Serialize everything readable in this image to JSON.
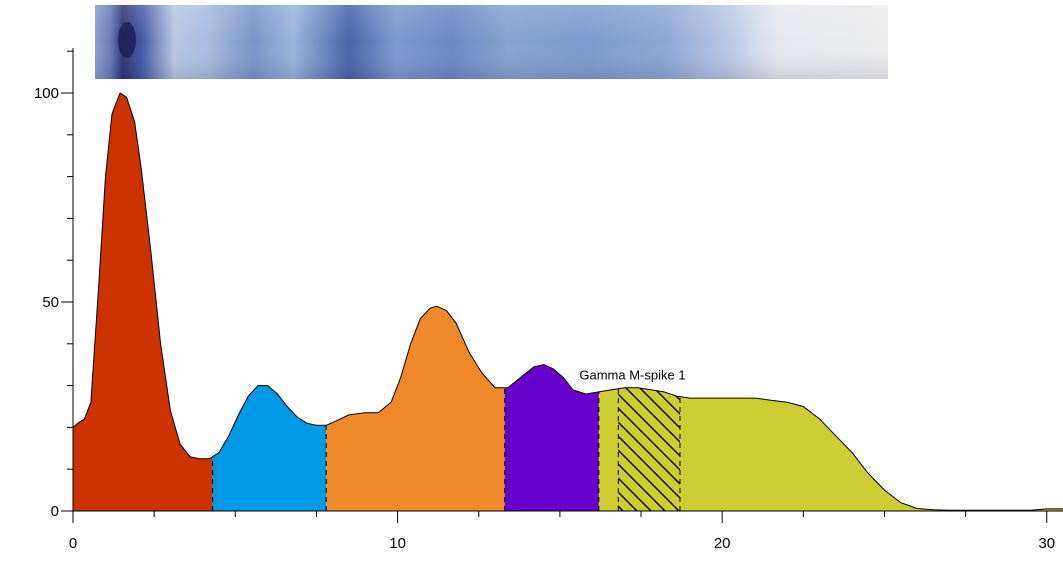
{
  "chart_data": {
    "type": "area",
    "title": "",
    "xlabel": "",
    "ylabel": "",
    "xlim": [
      0,
      30.5
    ],
    "ylim": [
      0,
      112
    ],
    "x_ticks_major": [
      0,
      10,
      20,
      30
    ],
    "x_ticks_minor": [
      2.5,
      5,
      7.5,
      12.5,
      15,
      17.5,
      22.5,
      25,
      27.5
    ],
    "y_ticks_major": [
      0,
      50,
      100
    ],
    "y_ticks_minor": [
      10,
      20,
      30,
      40,
      60,
      70,
      80,
      90,
      110
    ],
    "x_tick_labels": [
      "0",
      "10",
      "20",
      "30"
    ],
    "y_tick_labels": [
      "0",
      "50",
      "100"
    ],
    "grid": false,
    "legend": "none",
    "densitometry_strip": true,
    "curve": {
      "x": [
        0,
        0.15,
        0.35,
        0.55,
        0.8,
        1.0,
        1.2,
        1.45,
        1.65,
        1.9,
        2.1,
        2.4,
        2.7,
        3.0,
        3.3,
        3.6,
        3.9,
        4.2,
        4.5,
        4.8,
        5.1,
        5.4,
        5.7,
        6.0,
        6.3,
        6.6,
        6.9,
        7.2,
        7.5,
        7.8,
        8.1,
        8.5,
        9.0,
        9.4,
        9.8,
        10.1,
        10.4,
        10.7,
        11.0,
        11.2,
        11.5,
        11.8,
        12.2,
        12.6,
        13.0,
        13.4,
        13.8,
        14.2,
        14.5,
        14.8,
        15.1,
        15.4,
        15.8,
        16.2,
        16.6,
        17.0,
        17.4,
        17.8,
        18.2,
        18.6,
        19.0,
        19.5,
        20.0,
        20.5,
        21.0,
        21.5,
        22.0,
        22.5,
        23.0,
        23.5,
        24.0,
        24.5,
        25.0,
        25.5,
        26.0,
        26.5,
        27.0,
        27.5,
        28.0,
        28.5,
        29.0,
        29.5,
        30.0,
        30.5
      ],
      "y": [
        20,
        21,
        22,
        26,
        55,
        80,
        95,
        100,
        99,
        93,
        82,
        62,
        40,
        24,
        16,
        13,
        12.5,
        12.5,
        14,
        18,
        23,
        27.5,
        30,
        30,
        28,
        25,
        22.5,
        21,
        20.5,
        20.5,
        21.5,
        23,
        23.5,
        23.5,
        26,
        32,
        40,
        46,
        48.5,
        49,
        48,
        45,
        38,
        33,
        29.5,
        29.5,
        32,
        34.5,
        35,
        34,
        32,
        29,
        28,
        28.5,
        29,
        29.5,
        29.5,
        29,
        28.5,
        27.5,
        27,
        27,
        27,
        27,
        27,
        26.5,
        26,
        25,
        22,
        18,
        14,
        9,
        5,
        2,
        0.6,
        0.3,
        0.2,
        0.2,
        0.2,
        0.2,
        0.2,
        0.2,
        0.5,
        0.5
      ]
    },
    "fractions": [
      {
        "from": 0,
        "to": 4.3,
        "color": "#CC3300"
      },
      {
        "from": 4.3,
        "to": 7.8,
        "color": "#0099E6"
      },
      {
        "from": 7.8,
        "to": 13.3,
        "color": "#EE8A2A"
      },
      {
        "from": 13.3,
        "to": 16.2,
        "color": "#6600CC"
      },
      {
        "from": 16.2,
        "to": 30.5,
        "color": "#CCCC33"
      }
    ],
    "hatched_region": {
      "from": 16.8,
      "to": 18.7
    },
    "annotations": [
      {
        "text": "Gamma M-spike 1",
        "x": 15.6,
        "y": 31.5
      }
    ]
  }
}
